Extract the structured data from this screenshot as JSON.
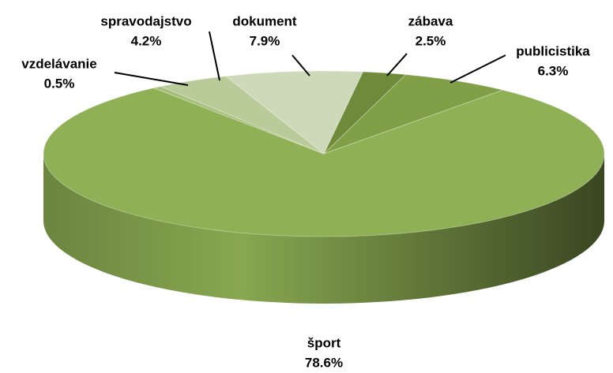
{
  "chart_data": {
    "type": "pie3d",
    "categories": [
      "zábava",
      "publicistika",
      "šport",
      "vzdelávanie",
      "spravodajstvo",
      "dokument"
    ],
    "values": [
      2.5,
      6.3,
      78.6,
      0.5,
      4.2,
      7.9
    ],
    "value_labels": [
      "2.5%",
      "6.3%",
      "78.6%",
      "0.5%",
      "4.2%",
      "7.9%"
    ],
    "colors": [
      "#6f8a3a",
      "#809f47",
      "#8fb054",
      "#a6bd7c",
      "#b8cb98",
      "#cdd9b9"
    ]
  }
}
